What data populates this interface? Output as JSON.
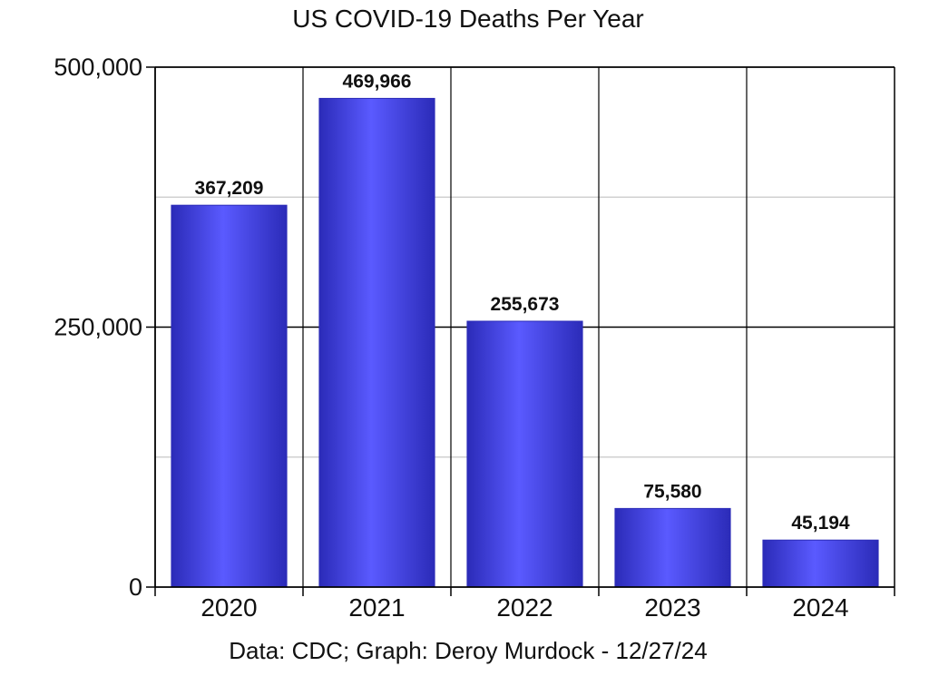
{
  "chart_data": {
    "type": "bar",
    "title": "US COVID-19 Deaths Per Year",
    "caption": "Data: CDC; Graph: Deroy Murdock - 12/27/24",
    "categories": [
      "2020",
      "2021",
      "2022",
      "2023",
      "2024"
    ],
    "values": [
      367209,
      469966,
      255673,
      75580,
      45194
    ],
    "data_labels": [
      "367,209",
      "469,966",
      "255,673",
      "75,580",
      "45,194"
    ],
    "y_ticks": [
      0,
      250000,
      500000
    ],
    "y_tick_labels": [
      "0",
      "250,000",
      "500,000"
    ],
    "minor_gridlines": [
      125000,
      375000
    ],
    "ylim": [
      0,
      500000
    ],
    "xlabel": "",
    "ylabel": "",
    "grid": true,
    "legend": "none",
    "colors": {
      "bar_edge": "#2b2bb8",
      "bar_center": "#5a5aff",
      "major_grid": "#000000",
      "minor_grid": "#c8c8c8"
    }
  }
}
